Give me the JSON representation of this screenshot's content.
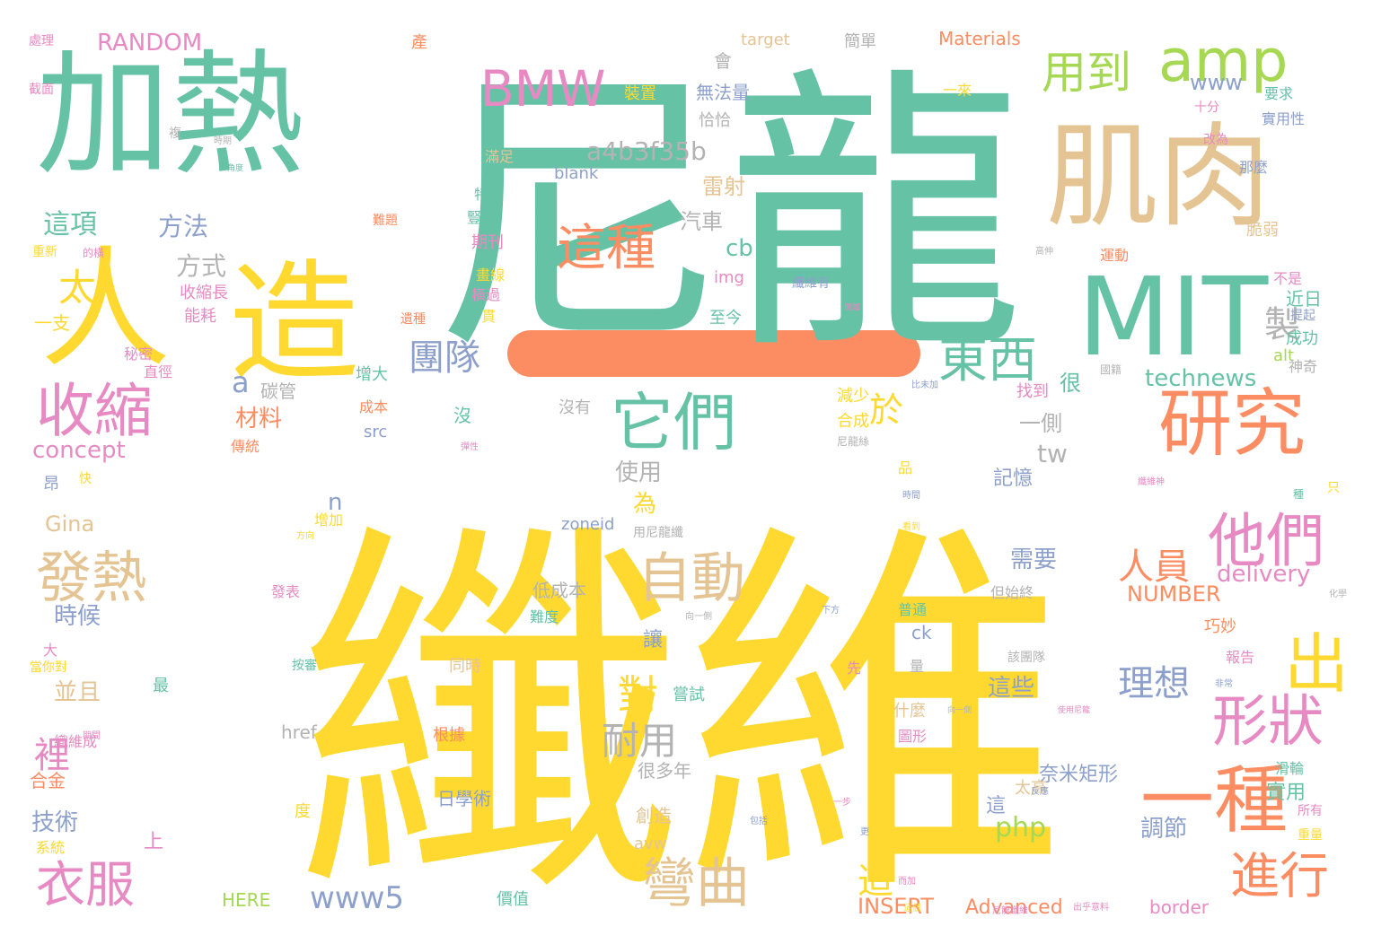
{
  "palette": {
    "teal": "#66c2a5",
    "yellow": "#ffd92f",
    "tan": "#e5c494",
    "pink": "#e78ac3",
    "orange": "#fc8d62",
    "green": "#a6d854",
    "blue": "#8da0cb",
    "gray": "#b3b3b3"
  },
  "words": [
    {
      "text": "纖維",
      "color": "yellow"
    },
    {
      "text": "尼龍",
      "color": "teal"
    },
    {
      "text": "加熱",
      "color": "teal"
    },
    {
      "text": "肌肉",
      "color": "tan"
    },
    {
      "text": "MIT",
      "color": "teal"
    },
    {
      "text": "人造",
      "color": "yellow"
    },
    {
      "text": "amp",
      "color": "green"
    },
    {
      "text": "BMW",
      "color": "pink"
    },
    {
      "text": "研究",
      "color": "orange"
    },
    {
      "text": "它們",
      "color": "teal"
    },
    {
      "text": "收縮",
      "color": "pink"
    },
    {
      "text": "他們",
      "color": "pink"
    },
    {
      "text": "一種",
      "color": "orange"
    },
    {
      "text": "出",
      "color": "yellow"
    },
    {
      "text": "東西",
      "color": "teal"
    },
    {
      "text": "用到",
      "color": "green"
    },
    {
      "text": "這種",
      "color": "orange"
    },
    {
      "text": "自動",
      "color": "tan"
    },
    {
      "text": "發熱",
      "color": "tan"
    },
    {
      "text": "形狀",
      "color": "pink"
    },
    {
      "text": "彎曲",
      "color": "tan"
    },
    {
      "text": "進行",
      "color": "orange"
    },
    {
      "text": "衣服",
      "color": "pink"
    },
    {
      "text": "團隊",
      "color": "blue"
    },
    {
      "text": "人員",
      "color": "orange"
    },
    {
      "text": "理想",
      "color": "blue"
    },
    {
      "text": "耐用",
      "color": "gray"
    },
    {
      "text": "對",
      "color": "yellow"
    },
    {
      "text": "造",
      "color": "yellow"
    },
    {
      "text": "裡",
      "color": "pink"
    },
    {
      "text": "太",
      "color": "yellow"
    },
    {
      "text": "製",
      "color": "gray"
    },
    {
      "text": "於",
      "color": "yellow"
    },
    {
      "text": "a",
      "color": "blue"
    },
    {
      "text": "a4b3f35b",
      "color": "gray"
    },
    {
      "text": "technews",
      "color": "teal"
    },
    {
      "text": "www5",
      "color": "blue"
    },
    {
      "text": "RANDOM",
      "color": "pink"
    },
    {
      "text": "concept",
      "color": "pink"
    },
    {
      "text": "Gina",
      "color": "tan"
    },
    {
      "text": "delivery",
      "color": "pink"
    },
    {
      "text": "NUMBER",
      "color": "orange"
    },
    {
      "text": "INSERT",
      "color": "orange"
    },
    {
      "text": "Advanced",
      "color": "orange"
    },
    {
      "text": "php",
      "color": "green"
    },
    {
      "text": "tw",
      "color": "gray"
    },
    {
      "text": "www",
      "color": "blue"
    },
    {
      "text": "cb",
      "color": "teal"
    },
    {
      "text": "img",
      "color": "pink"
    },
    {
      "text": "blank",
      "color": "blue"
    },
    {
      "text": "target",
      "color": "tan"
    },
    {
      "text": "Materials",
      "color": "orange"
    },
    {
      "text": "zoneid",
      "color": "blue"
    },
    {
      "text": "href",
      "color": "gray"
    },
    {
      "text": "src",
      "color": "blue"
    },
    {
      "text": "HERE",
      "color": "green"
    },
    {
      "text": "border",
      "color": "pink"
    },
    {
      "text": "avw",
      "color": "tan"
    },
    {
      "text": "alt",
      "color": "green"
    },
    {
      "text": "ck",
      "color": "blue"
    },
    {
      "text": "n",
      "color": "blue"
    },
    {
      "text": "這項",
      "color": "teal"
    },
    {
      "text": "方法",
      "color": "blue"
    },
    {
      "text": "方式",
      "color": "gray"
    },
    {
      "text": "時候",
      "color": "blue"
    },
    {
      "text": "並且",
      "color": "tan"
    },
    {
      "text": "技術",
      "color": "blue"
    },
    {
      "text": "材料",
      "color": "orange"
    },
    {
      "text": "碳管",
      "color": "gray"
    },
    {
      "text": "一側",
      "color": "gray"
    },
    {
      "text": "使用",
      "color": "gray"
    },
    {
      "text": "為",
      "color": "yellow"
    },
    {
      "text": "雷射",
      "color": "tan"
    },
    {
      "text": "汽車",
      "color": "gray"
    },
    {
      "text": "需要",
      "color": "blue"
    },
    {
      "text": "這些",
      "color": "blue"
    },
    {
      "text": "調節",
      "color": "blue"
    },
    {
      "text": "很",
      "color": "teal"
    },
    {
      "text": "沒",
      "color": "teal"
    },
    {
      "text": "會",
      "color": "gray"
    },
    {
      "text": "近日",
      "color": "teal"
    },
    {
      "text": "成功",
      "color": "teal"
    },
    {
      "text": "實用",
      "color": "teal"
    },
    {
      "text": "記憶",
      "color": "blue"
    },
    {
      "text": "讓",
      "color": "blue"
    },
    {
      "text": "這",
      "color": "blue"
    },
    {
      "text": "至今",
      "color": "teal"
    },
    {
      "text": "找到",
      "color": "pink"
    },
    {
      "text": "減少",
      "color": "yellow"
    },
    {
      "text": "合成",
      "color": "yellow"
    },
    {
      "text": "沒有",
      "color": "gray"
    },
    {
      "text": "增大",
      "color": "teal"
    },
    {
      "text": "成本",
      "color": "orange"
    },
    {
      "text": "傳統",
      "color": "orange"
    },
    {
      "text": "增加",
      "color": "yellow"
    },
    {
      "text": "收縮長",
      "color": "pink"
    },
    {
      "text": "能耗",
      "color": "pink"
    },
    {
      "text": "一支",
      "color": "yellow"
    },
    {
      "text": "秘密",
      "color": "pink"
    },
    {
      "text": "直徑",
      "color": "pink"
    },
    {
      "text": "昂",
      "color": "blue"
    },
    {
      "text": "快",
      "color": "yellow"
    },
    {
      "text": "大",
      "color": "pink"
    },
    {
      "text": "最",
      "color": "teal"
    },
    {
      "text": "上",
      "color": "pink"
    },
    {
      "text": "度",
      "color": "yellow"
    },
    {
      "text": "品",
      "color": "yellow"
    },
    {
      "text": "只",
      "color": "yellow"
    },
    {
      "text": "種",
      "color": "teal"
    },
    {
      "text": "量",
      "color": "gray"
    },
    {
      "text": "先",
      "color": "pink"
    },
    {
      "text": "合金",
      "color": "orange"
    },
    {
      "text": "系統",
      "color": "yellow"
    },
    {
      "text": "織維成",
      "color": "pink"
    },
    {
      "text": "期刊",
      "color": "pink"
    },
    {
      "text": "同時",
      "color": "tan"
    },
    {
      "text": "根據",
      "color": "orange"
    },
    {
      "text": "按審",
      "color": "teal"
    },
    {
      "text": "發表",
      "color": "pink"
    },
    {
      "text": "低成本",
      "color": "gray"
    },
    {
      "text": "難度",
      "color": "teal"
    },
    {
      "text": "很多年",
      "color": "gray"
    },
    {
      "text": "嘗試",
      "color": "teal"
    },
    {
      "text": "創造",
      "color": "tan"
    },
    {
      "text": "價值",
      "color": "teal"
    },
    {
      "text": "日學術",
      "color": "blue"
    },
    {
      "text": "奈米矩形",
      "color": "blue"
    },
    {
      "text": "太高",
      "color": "tan"
    },
    {
      "text": "什麼",
      "color": "tan"
    },
    {
      "text": "圖形",
      "color": "pink"
    },
    {
      "text": "普通",
      "color": "teal"
    },
    {
      "text": "所有",
      "color": "pink"
    },
    {
      "text": "重量",
      "color": "yellow"
    },
    {
      "text": "滑輪",
      "color": "teal"
    },
    {
      "text": "報告",
      "color": "pink"
    },
    {
      "text": "巧妙",
      "color": "orange"
    },
    {
      "text": "十分",
      "color": "pink"
    },
    {
      "text": "要求",
      "color": "teal"
    },
    {
      "text": "實用性",
      "color": "blue"
    },
    {
      "text": "改為",
      "color": "pink"
    },
    {
      "text": "那麼",
      "color": "blue"
    },
    {
      "text": "脆弱",
      "color": "tan"
    },
    {
      "text": "運動",
      "color": "orange"
    },
    {
      "text": "不是",
      "color": "pink"
    },
    {
      "text": "提起",
      "color": "blue"
    },
    {
      "text": "神奇",
      "color": "gray"
    },
    {
      "text": "無法量",
      "color": "blue"
    },
    {
      "text": "恰恰",
      "color": "gray"
    },
    {
      "text": "一來",
      "color": "yellow"
    },
    {
      "text": "簡單",
      "color": "gray"
    },
    {
      "text": "裝置",
      "color": "yellow"
    },
    {
      "text": "滿足",
      "color": "tan"
    },
    {
      "text": "特性",
      "color": "teal"
    },
    {
      "text": "豎直",
      "color": "teal"
    },
    {
      "text": "畫線",
      "color": "yellow"
    },
    {
      "text": "橫過",
      "color": "pink"
    },
    {
      "text": "貫",
      "color": "yellow"
    },
    {
      "text": "纖維有",
      "color": "blue"
    },
    {
      "text": "產",
      "color": "orange"
    },
    {
      "text": "處理",
      "color": "pink"
    },
    {
      "text": "截面",
      "color": "pink"
    },
    {
      "text": "複",
      "color": "gray"
    },
    {
      "text": "重新",
      "color": "yellow"
    },
    {
      "text": "的橫",
      "color": "pink"
    },
    {
      "text": "難題",
      "color": "orange"
    },
    {
      "text": "遺種",
      "color": "orange"
    },
    {
      "text": "尼龍絲",
      "color": "gray"
    },
    {
      "text": "用尼龍纖",
      "color": "gray"
    },
    {
      "text": "但始終",
      "color": "gray"
    },
    {
      "text": "該團隊",
      "color": "gray"
    },
    {
      "text": "當你對",
      "color": "yellow"
    },
    {
      "text": "國籍",
      "color": "gray"
    },
    {
      "text": "向一側",
      "color": "gray"
    },
    {
      "text": "比未加",
      "color": "blue"
    },
    {
      "text": "下方",
      "color": "blue"
    },
    {
      "text": "化學",
      "color": "gray"
    },
    {
      "text": "出乎意料",
      "color": "pink"
    },
    {
      "text": "一步",
      "color": "pink"
    },
    {
      "text": "向一側",
      "color": "gray"
    },
    {
      "text": "使用尼龍",
      "color": "pink"
    },
    {
      "text": "更",
      "color": "blue"
    },
    {
      "text": "期間",
      "color": "pink"
    },
    {
      "text": "反應",
      "color": "blue"
    },
    {
      "text": "包括",
      "color": "blue"
    },
    {
      "text": "高伸",
      "color": "gray"
    },
    {
      "text": "這個",
      "color": "yellow"
    },
    {
      "text": "而加",
      "color": "pink"
    },
    {
      "text": "施加",
      "color": "pink"
    },
    {
      "text": "纖維神",
      "color": "pink"
    },
    {
      "text": "非常",
      "color": "blue"
    },
    {
      "text": "彈性",
      "color": "pink"
    },
    {
      "text": "角度",
      "color": "teal"
    },
    {
      "text": "時期",
      "color": "gray"
    },
    {
      "text": "尼龍纖維",
      "color": "pink"
    },
    {
      "text": "方向",
      "color": "yellow"
    },
    {
      "text": "時間",
      "color": "blue"
    },
    {
      "text": "看到",
      "color": "yellow"
    }
  ]
}
